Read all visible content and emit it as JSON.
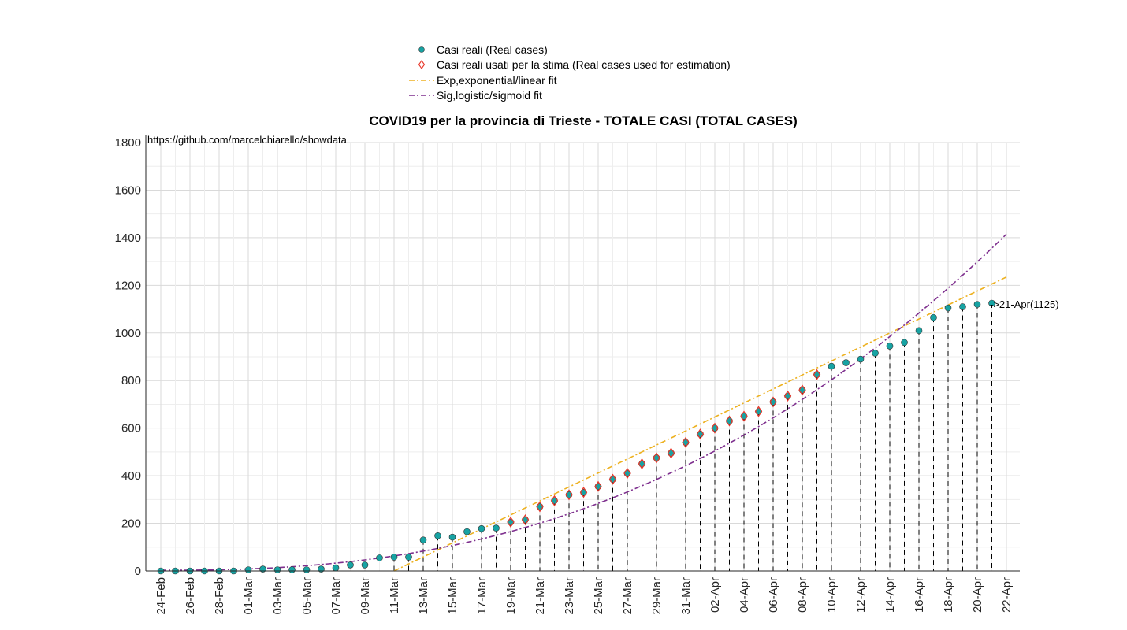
{
  "chart_data": {
    "type": "scatter",
    "title": "COVID19 per la provincia di Trieste - TOTALE CASI (TOTAL CASES)",
    "xlabel": "",
    "ylabel": "",
    "ylim": [
      0,
      1800
    ],
    "yticks": [
      0,
      200,
      400,
      600,
      800,
      1000,
      1200,
      1400,
      1600,
      1800
    ],
    "xtick_labels": [
      "24-Feb",
      "26-Feb",
      "28-Feb",
      "01-Mar",
      "03-Mar",
      "05-Mar",
      "07-Mar",
      "09-Mar",
      "11-Mar",
      "13-Mar",
      "15-Mar",
      "17-Mar",
      "19-Mar",
      "21-Mar",
      "23-Mar",
      "25-Mar",
      "27-Mar",
      "29-Mar",
      "31-Mar",
      "02-Apr",
      "04-Apr",
      "06-Apr",
      "08-Apr",
      "10-Apr",
      "12-Apr",
      "14-Apr",
      "16-Apr",
      "18-Apr",
      "20-Apr",
      "22-Apr"
    ],
    "grid": true,
    "legend_position": "top",
    "source_note": "https://github.com/marcelchiarello/showdata",
    "last_point_label": "->21-Apr(1125)",
    "series": [
      {
        "name": "Casi reali (Real cases)",
        "color": "#17a3a3",
        "marker": "circle",
        "x": [
          "24-Feb",
          "25-Feb",
          "26-Feb",
          "27-Feb",
          "28-Feb",
          "29-Feb",
          "01-Mar",
          "02-Mar",
          "03-Mar",
          "04-Mar",
          "05-Mar",
          "06-Mar",
          "07-Mar",
          "08-Mar",
          "09-Mar",
          "10-Mar",
          "11-Mar",
          "12-Mar",
          "13-Mar",
          "14-Mar",
          "15-Mar",
          "16-Mar",
          "17-Mar",
          "18-Mar",
          "19-Mar",
          "20-Mar",
          "21-Mar",
          "22-Mar",
          "23-Mar",
          "24-Mar",
          "25-Mar",
          "26-Mar",
          "27-Mar",
          "28-Mar",
          "29-Mar",
          "30-Mar",
          "31-Mar",
          "01-Apr",
          "02-Apr",
          "03-Apr",
          "04-Apr",
          "05-Apr",
          "06-Apr",
          "07-Apr",
          "08-Apr",
          "09-Apr",
          "10-Apr",
          "11-Apr",
          "12-Apr",
          "13-Apr",
          "14-Apr",
          "15-Apr",
          "16-Apr",
          "17-Apr",
          "18-Apr",
          "19-Apr",
          "20-Apr",
          "21-Apr"
        ],
        "values": [
          0,
          0,
          0,
          0,
          0,
          0,
          5,
          8,
          5,
          5,
          5,
          8,
          13,
          25,
          25,
          55,
          58,
          58,
          130,
          148,
          142,
          165,
          178,
          180,
          205,
          215,
          270,
          295,
          320,
          330,
          355,
          385,
          410,
          450,
          475,
          495,
          540,
          575,
          600,
          630,
          650,
          670,
          710,
          735,
          760,
          825,
          860,
          875,
          890,
          915,
          945,
          960,
          1010,
          1065,
          1105,
          1110,
          1120,
          1125
        ]
      },
      {
        "name": "Casi reali usati per la stima (Real cases used for estimation)",
        "color": "#e8382b",
        "marker": "diamond",
        "x": [
          "19-Mar",
          "20-Mar",
          "21-Mar",
          "22-Mar",
          "23-Mar",
          "24-Mar",
          "25-Mar",
          "26-Mar",
          "27-Mar",
          "28-Mar",
          "29-Mar",
          "30-Mar",
          "31-Mar",
          "01-Apr",
          "02-Apr",
          "03-Apr",
          "04-Apr",
          "05-Apr",
          "06-Apr",
          "07-Apr",
          "08-Apr",
          "09-Apr"
        ],
        "values": [
          205,
          215,
          270,
          295,
          320,
          330,
          355,
          385,
          410,
          450,
          475,
          495,
          540,
          575,
          600,
          630,
          650,
          670,
          710,
          735,
          760,
          825
        ]
      },
      {
        "name": "Exp,exponential/linear fit",
        "color": "#edb120",
        "style": "dash-dot",
        "x": [
          "11-Mar",
          "22-Apr"
        ],
        "values": [
          0,
          1235
        ]
      },
      {
        "name": "Sig,logistic/sigmoid fit",
        "color": "#7e2f8e",
        "style": "dash-dot",
        "x": [
          "24-Feb",
          "22-Apr"
        ],
        "values": [
          3,
          1415
        ]
      }
    ]
  }
}
